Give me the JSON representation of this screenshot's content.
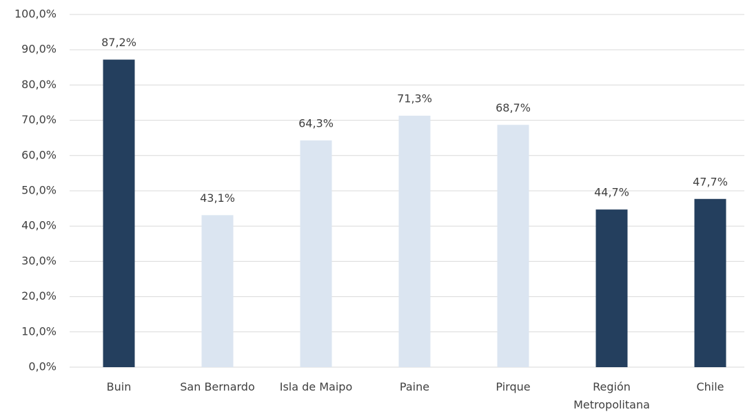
{
  "chart_data": {
    "type": "bar",
    "categories": [
      "Buin",
      "San Bernardo",
      "Isla de Maipo",
      "Paine",
      "Pirque",
      "Región Metropolitana",
      "Chile"
    ],
    "values": [
      87.2,
      43.1,
      64.3,
      71.3,
      68.7,
      44.7,
      47.7
    ],
    "value_labels": [
      "87,2%",
      "43,1%",
      "64,3%",
      "71,3%",
      "68,7%",
      "44,7%",
      "47,7%"
    ],
    "colors": [
      "#243f5e",
      "#dbe5f1",
      "#dbe5f1",
      "#dbe5f1",
      "#dbe5f1",
      "#243f5e",
      "#243f5e"
    ],
    "ylim": [
      0,
      100
    ],
    "yticks": [
      {
        "value": 0,
        "label": "0,0%"
      },
      {
        "value": 10,
        "label": "10,0%"
      },
      {
        "value": 20,
        "label": "20,0%"
      },
      {
        "value": 30,
        "label": "30,0%"
      },
      {
        "value": 40,
        "label": "40,0%"
      },
      {
        "value": 50,
        "label": "50,0%"
      },
      {
        "value": 60,
        "label": "60,0%"
      },
      {
        "value": 70,
        "label": "70,0%"
      },
      {
        "value": 80,
        "label": "80,0%"
      },
      {
        "value": 90,
        "label": "90,0%"
      },
      {
        "value": 100,
        "label": "100,0%"
      }
    ],
    "grid": true
  }
}
